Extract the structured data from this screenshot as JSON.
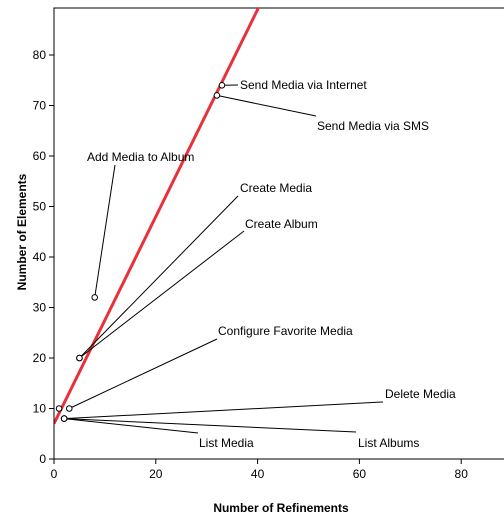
{
  "chart_data": {
    "type": "scatter",
    "xlabel": "Number of Refinements",
    "ylabel": "Number of Elements",
    "xlim": [
      0,
      88
    ],
    "ylim": [
      0,
      90
    ],
    "xticks": [
      "0",
      "20",
      "40",
      "60",
      "80"
    ],
    "yticks": [
      "0",
      "10",
      "20",
      "30",
      "40",
      "50",
      "60",
      "70",
      "80"
    ],
    "grid": false,
    "fit_line": {
      "intercept": 7,
      "slope": 2.05,
      "color": "#e8313a"
    },
    "points": [
      {
        "x": 33,
        "y": 74,
        "label": "Send Media via Internet"
      },
      {
        "x": 32,
        "y": 72,
        "label": "Send Media via SMS"
      },
      {
        "x": 8,
        "y": 32,
        "label": "Add Media to Album"
      },
      {
        "x": 5,
        "y": 20,
        "label": "Create Media"
      },
      {
        "x": 5,
        "y": 20,
        "label": "Create Album"
      },
      {
        "x": 3,
        "y": 10,
        "label": "Configure Favorite Media"
      },
      {
        "x": 1,
        "y": 10,
        "label": ""
      },
      {
        "x": 2,
        "y": 8,
        "label": "Delete Media"
      },
      {
        "x": 2,
        "y": 8,
        "label": "List Media"
      },
      {
        "x": 2,
        "y": 8,
        "label": "List Albums"
      }
    ]
  }
}
